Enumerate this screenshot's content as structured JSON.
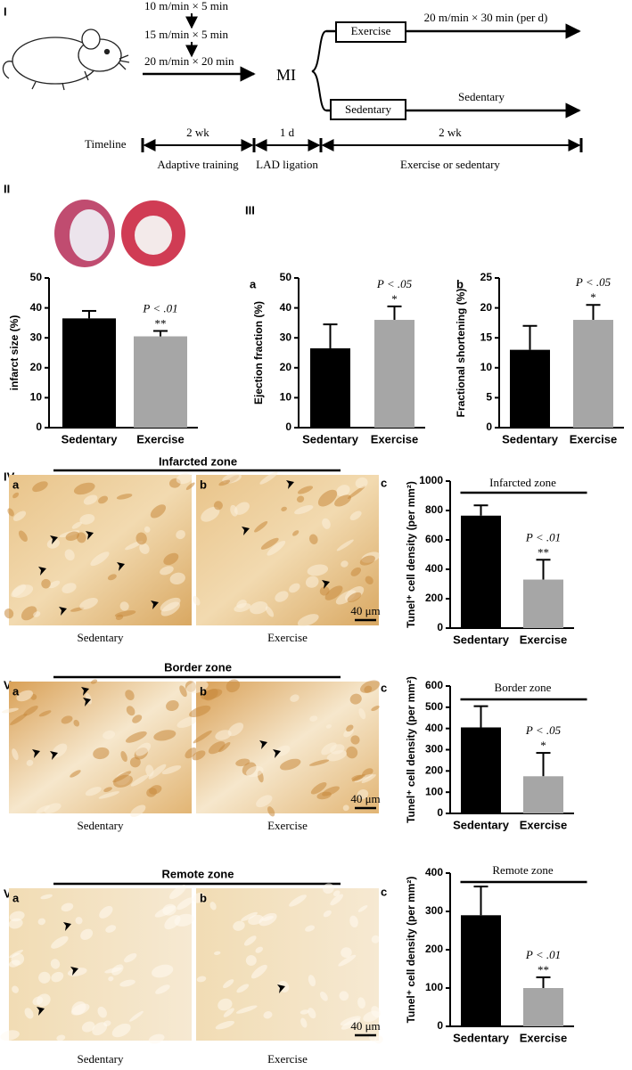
{
  "protocol": {
    "steps": [
      "10 m/min × 5 min",
      "15 m/min × 5 min",
      "20 m/min × 20 min"
    ],
    "event": "MI",
    "groups": [
      {
        "name": "Exercise",
        "regimen": "20 m/min × 30 min (per d)"
      },
      {
        "name": "Sedentary",
        "regimen": "Sedentary"
      }
    ],
    "timeline": {
      "label": "Timeline",
      "durations": [
        "2 wk",
        "1 d",
        "2 wk"
      ],
      "phases": [
        "Adaptive training",
        "LAD ligation",
        "Exercise or sedentary"
      ]
    }
  },
  "sections": [
    {
      "label": "I"
    },
    {
      "label": "II"
    },
    {
      "label": "III",
      "sublabels": [
        "a",
        "b"
      ]
    },
    {
      "label": "IV",
      "zone": "Infarcted zone",
      "sublabels": [
        "a",
        "b",
        "c"
      ],
      "captions": [
        "Sedentary",
        "Exercise"
      ],
      "scale_bar": "40 μm"
    },
    {
      "label": "V",
      "zone": "Border zone",
      "sublabels": [
        "a",
        "b",
        "c"
      ],
      "captions": [
        "Sedentary",
        "Exercise"
      ],
      "scale_bar": "40 μm"
    },
    {
      "label": "VI",
      "zone": "Remote zone",
      "sublabels": [
        "a",
        "b",
        "c"
      ],
      "captions": [
        "Sedentary",
        "Exercise"
      ],
      "scale_bar": "40 μm"
    }
  ],
  "chart_data": [
    {
      "type": "bar",
      "y_label": "infarct size (%)",
      "categories": [
        "Sedentary",
        "Exercise"
      ],
      "values": [
        36.5,
        30.5
      ],
      "errors": [
        2.5,
        1.8
      ],
      "colors": [
        "#000000",
        "#a6a6a6"
      ],
      "ylim": [
        0,
        50
      ],
      "yticks": [
        0,
        10,
        20,
        30,
        40,
        50
      ],
      "p_value": "P < .01",
      "significance": "**"
    },
    {
      "type": "bar",
      "y_label": "Ejection fraction (%)",
      "categories": [
        "Sedentary",
        "Exercise"
      ],
      "values": [
        26.5,
        36
      ],
      "errors": [
        8,
        4.5
      ],
      "colors": [
        "#000000",
        "#a6a6a6"
      ],
      "ylim": [
        0,
        50
      ],
      "yticks": [
        0,
        10,
        20,
        30,
        40,
        50
      ],
      "p_value": "P < .05",
      "significance": "*"
    },
    {
      "type": "bar",
      "y_label": "Fractional shortening (%)",
      "categories": [
        "Sedentary",
        "Exercise"
      ],
      "values": [
        13,
        18
      ],
      "errors": [
        4,
        2.5
      ],
      "colors": [
        "#000000",
        "#a6a6a6"
      ],
      "ylim": [
        0,
        25
      ],
      "yticks": [
        0,
        5,
        10,
        15,
        20,
        25
      ],
      "p_value": "P < .05",
      "significance": "*"
    },
    {
      "type": "bar",
      "title": "Infarcted zone",
      "y_label": "Tunel⁺ cell density (per mm²)",
      "categories": [
        "Sedentary",
        "Exercise"
      ],
      "values": [
        765,
        330
      ],
      "errors": [
        70,
        135
      ],
      "colors": [
        "#000000",
        "#a6a6a6"
      ],
      "ylim": [
        0,
        1000
      ],
      "yticks": [
        0,
        200,
        400,
        600,
        800,
        1000
      ],
      "p_value": "P < .01",
      "significance": "**"
    },
    {
      "type": "bar",
      "title": "Border zone",
      "y_label": "Tunel⁺ cell density (per mm²)",
      "categories": [
        "Sedentary",
        "Exercise"
      ],
      "values": [
        405,
        175
      ],
      "errors": [
        100,
        110
      ],
      "colors": [
        "#000000",
        "#a6a6a6"
      ],
      "ylim": [
        0,
        600
      ],
      "yticks": [
        0,
        100,
        200,
        300,
        400,
        500,
        600
      ],
      "p_value": "P < .05",
      "significance": "*"
    },
    {
      "type": "bar",
      "title": "Remote zone",
      "y_label": "Tunel⁺ cell density (per mm²)",
      "categories": [
        "Sedentary",
        "Exercise"
      ],
      "values": [
        290,
        100
      ],
      "errors": [
        75,
        28
      ],
      "colors": [
        "#000000",
        "#a6a6a6"
      ],
      "ylim": [
        0,
        400
      ],
      "yticks": [
        0,
        100,
        200,
        300,
        400
      ],
      "p_value": "P < .01",
      "significance": "**"
    }
  ]
}
